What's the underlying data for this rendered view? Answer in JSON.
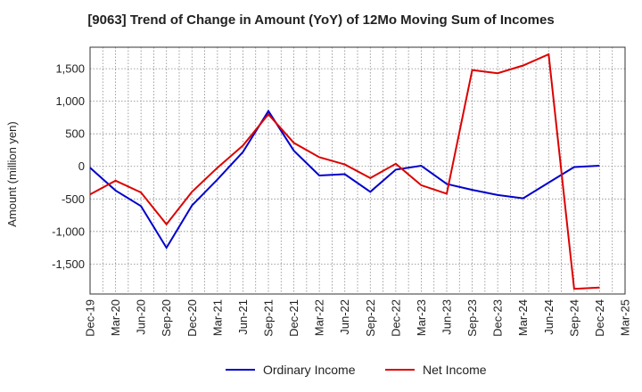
{
  "chart_data": {
    "type": "line",
    "title": "[9063]  Trend of Change in Amount (YoY) of 12Mo Moving Sum of Incomes",
    "xlabel": "",
    "ylabel": "Amount (million yen)",
    "ylim": [
      -1960,
      1830
    ],
    "y_ticks": [
      -1500,
      -1000,
      -500,
      0,
      500,
      1000,
      1500
    ],
    "y_tick_labels": [
      "-1,500",
      "-1,000",
      "-500",
      "0",
      "500",
      "1,000",
      "1,500"
    ],
    "categories": [
      "Dec-19",
      "Mar-20",
      "Jun-20",
      "Sep-20",
      "Dec-20",
      "Mar-21",
      "Jun-21",
      "Sep-21",
      "Dec-21",
      "Mar-22",
      "Jun-22",
      "Sep-22",
      "Dec-22",
      "Mar-23",
      "Jun-23",
      "Sep-23",
      "Dec-23",
      "Mar-24",
      "Jun-24",
      "Sep-24",
      "Dec-24",
      "Mar-25"
    ],
    "grid": true,
    "legend_position": "bottom",
    "series": [
      {
        "name": "Ordinary Income",
        "color": "#0000cc",
        "values": [
          -20,
          -370,
          -610,
          -1250,
          -600,
          -200,
          220,
          850,
          240,
          -140,
          -120,
          -390,
          -50,
          10,
          -270,
          -360,
          -440,
          -490,
          -250,
          -10,
          10,
          null
        ]
      },
      {
        "name": "Net Income",
        "color": "#dd0000",
        "values": [
          -430,
          -220,
          -400,
          -890,
          -390,
          -20,
          320,
          800,
          360,
          140,
          30,
          -180,
          40,
          -290,
          -420,
          1480,
          1430,
          1550,
          1720,
          -1880,
          -1860,
          null
        ]
      }
    ]
  }
}
